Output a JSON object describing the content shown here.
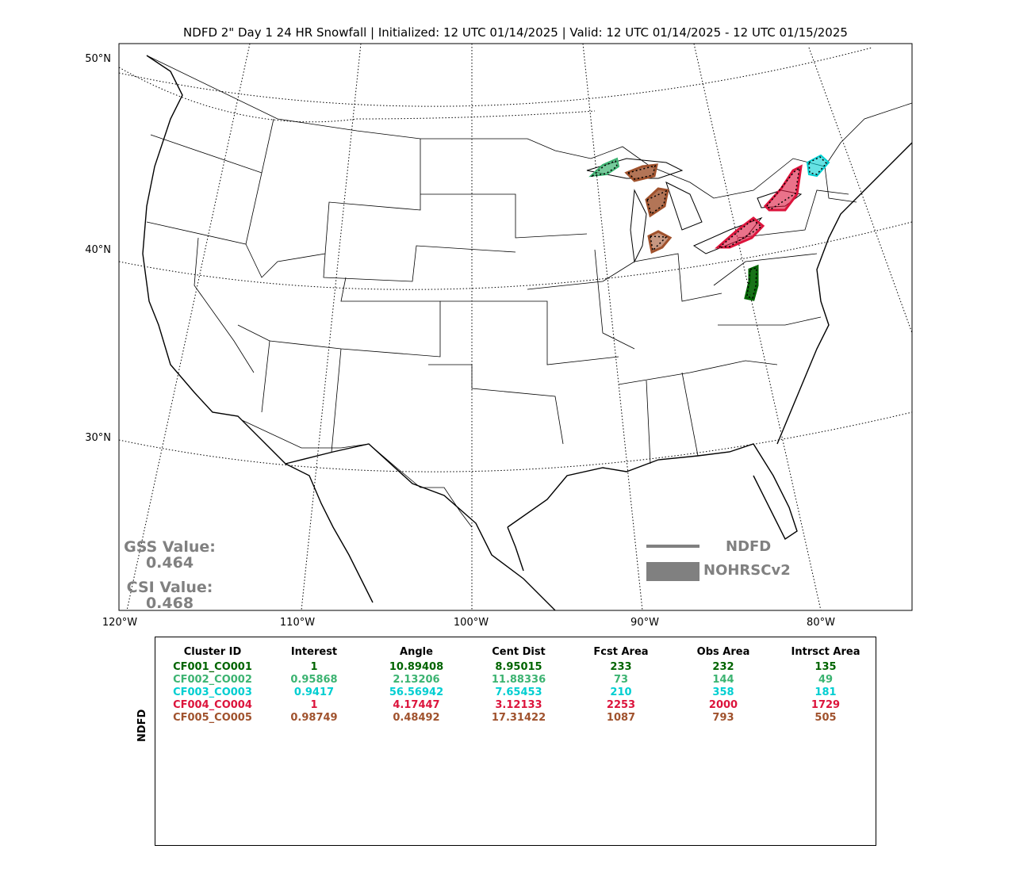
{
  "title": "NDFD 2\" Day 1 24 HR Snowfall | Initialized: 12 UTC 01/14/2025 | Valid: 12 UTC 01/14/2025 - 12 UTC 01/15/2025",
  "lat_labels": [
    "50°N",
    "40°N",
    "30°N"
  ],
  "lon_labels": [
    "120°W",
    "110°W",
    "100°W",
    "90°W",
    "80°W"
  ],
  "stats": {
    "gss_label": "GSS Value:",
    "gss_value": "0.464",
    "csi_label": "CSI Value:",
    "csi_value": "0.468"
  },
  "legend": {
    "line_label": "NDFD",
    "fill_label": "NOHRSCv2",
    "color": "#808080"
  },
  "table": {
    "ylabel": "NDFD",
    "headers": [
      "Cluster ID",
      "Interest",
      "Angle",
      "Cent Dist",
      "Fcst Area",
      "Obs Area",
      "Intrsct Area"
    ],
    "rows": [
      {
        "color": "#006400",
        "cells": [
          "CF001_CO001",
          "1",
          "10.89408",
          "8.95015",
          "233",
          "232",
          "135"
        ]
      },
      {
        "color": "#3cb371",
        "cells": [
          "CF002_CO002",
          "0.95868",
          "2.13206",
          "11.88336",
          "73",
          "144",
          "49"
        ]
      },
      {
        "color": "#00ced1",
        "cells": [
          "CF003_CO003",
          "0.9417",
          "56.56942",
          "7.65453",
          "210",
          "358",
          "181"
        ]
      },
      {
        "color": "#dc143c",
        "cells": [
          "CF004_CO004",
          "1",
          "4.17447",
          "3.12133",
          "2253",
          "2000",
          "1729"
        ]
      },
      {
        "color": "#a0522d",
        "cells": [
          "CF005_CO005",
          "0.98749",
          "0.48492",
          "17.31422",
          "1087",
          "793",
          "505"
        ]
      }
    ]
  }
}
